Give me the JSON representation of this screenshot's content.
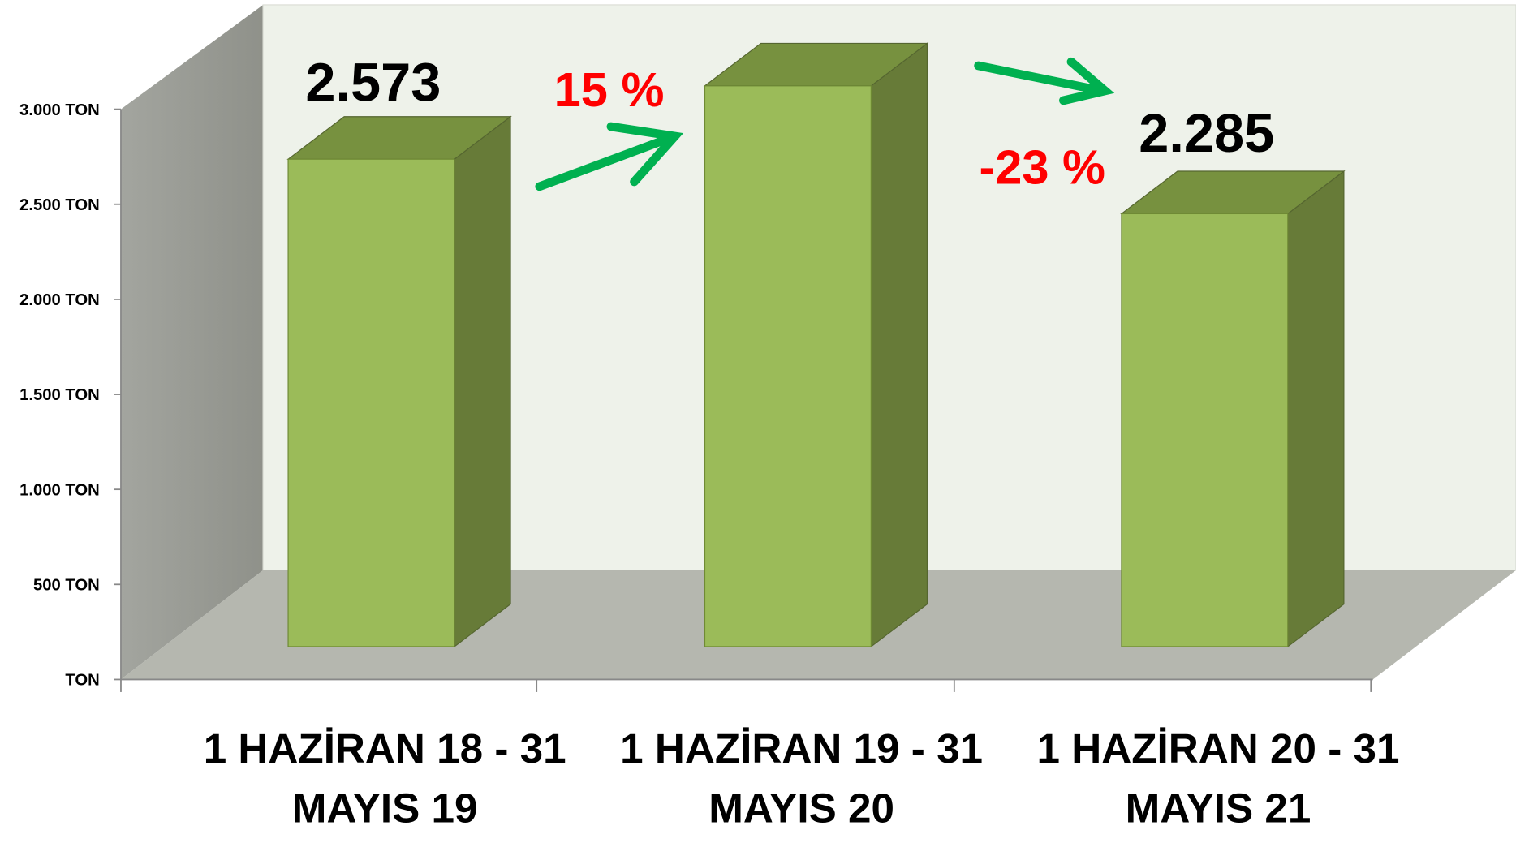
{
  "chart_data": {
    "type": "bar3d",
    "categories": [
      "1 HAZİRAN 18 - 31 MAYIS 19",
      "1 HAZİRAN 19 - 31 MAYIS 20",
      "1 HAZİRAN 20 - 31 MAYIS 21"
    ],
    "values": [
      2573,
      2960,
      2285
    ],
    "value_labels": [
      "2.573",
      null,
      "2.285"
    ],
    "color": "#9bbb59",
    "ylim": [
      0,
      3000
    ],
    "yticks": [
      {
        "value": 0,
        "label": "TON"
      },
      {
        "value": 500,
        "label": "500 TON"
      },
      {
        "value": 1000,
        "label": "1.000 TON"
      },
      {
        "value": 1500,
        "label": "1.500 TON"
      },
      {
        "value": 2000,
        "label": "2.000 TON"
      },
      {
        "value": 2500,
        "label": "2.500 TON"
      },
      {
        "value": 3000,
        "label": "3.000 TON"
      }
    ],
    "annotations": [
      {
        "text": "15 %",
        "color": "#ff0000"
      },
      {
        "text": "-23 %",
        "color": "#ff0000"
      }
    ]
  }
}
